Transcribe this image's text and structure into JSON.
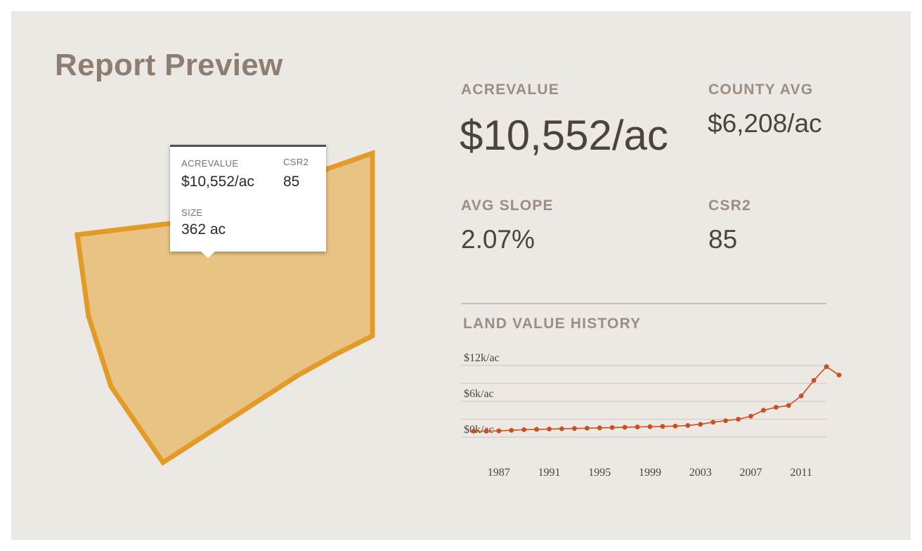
{
  "page": {
    "title": "Report Preview"
  },
  "parcel": {
    "fill_color": "#e8c384",
    "stroke_color": "#e29b27"
  },
  "tooltip": {
    "acrevalue_label": "ACREVALUE",
    "acrevalue_value": "$10,552/ac",
    "csr2_label": "CSR2",
    "csr2_value": "85",
    "size_label": "SIZE",
    "size_value": "362 ac"
  },
  "stats": {
    "acrevalue": {
      "label": "ACREVALUE",
      "value": "$10,552/ac"
    },
    "county_avg": {
      "label": "COUNTY AVG",
      "value": "$6,208/ac"
    },
    "avg_slope": {
      "label": "AVG SLOPE",
      "value": "2.07%"
    },
    "csr2": {
      "label": "CSR2",
      "value": "85"
    }
  },
  "history": {
    "title": "LAND VALUE HISTORY"
  },
  "chart_data": {
    "type": "line",
    "title": "LAND VALUE HISTORY",
    "line_color": "#cc4e1e",
    "grid": true,
    "y_ticks": [
      {
        "value": 0,
        "label": "$0k/ac"
      },
      {
        "value": 6000,
        "label": "$6k/ac"
      },
      {
        "value": 12000,
        "label": "$12k/ac"
      }
    ],
    "ylim": [
      0,
      12000
    ],
    "x_ticks": [
      1987,
      1991,
      1995,
      1999,
      2003,
      2007,
      2011
    ],
    "xlim": [
      1984,
      2013
    ],
    "series": [
      {
        "x": [
          1985,
          1986,
          1987,
          1988,
          1989,
          1990,
          1991,
          1992,
          1993,
          1994,
          1995,
          1996,
          1997,
          1998,
          1999,
          2000,
          2001,
          2002,
          2003,
          2004,
          2005,
          2006,
          2007,
          2008,
          2009,
          2010,
          2011,
          2012,
          2013,
          2014
        ],
        "y": [
          1000,
          1000,
          1050,
          1150,
          1250,
          1300,
          1350,
          1400,
          1450,
          1500,
          1550,
          1600,
          1650,
          1700,
          1750,
          1800,
          1850,
          1950,
          2150,
          2500,
          2750,
          3000,
          3500,
          4500,
          5000,
          5300,
          6900,
          9500,
          11800,
          10400
        ]
      }
    ]
  }
}
